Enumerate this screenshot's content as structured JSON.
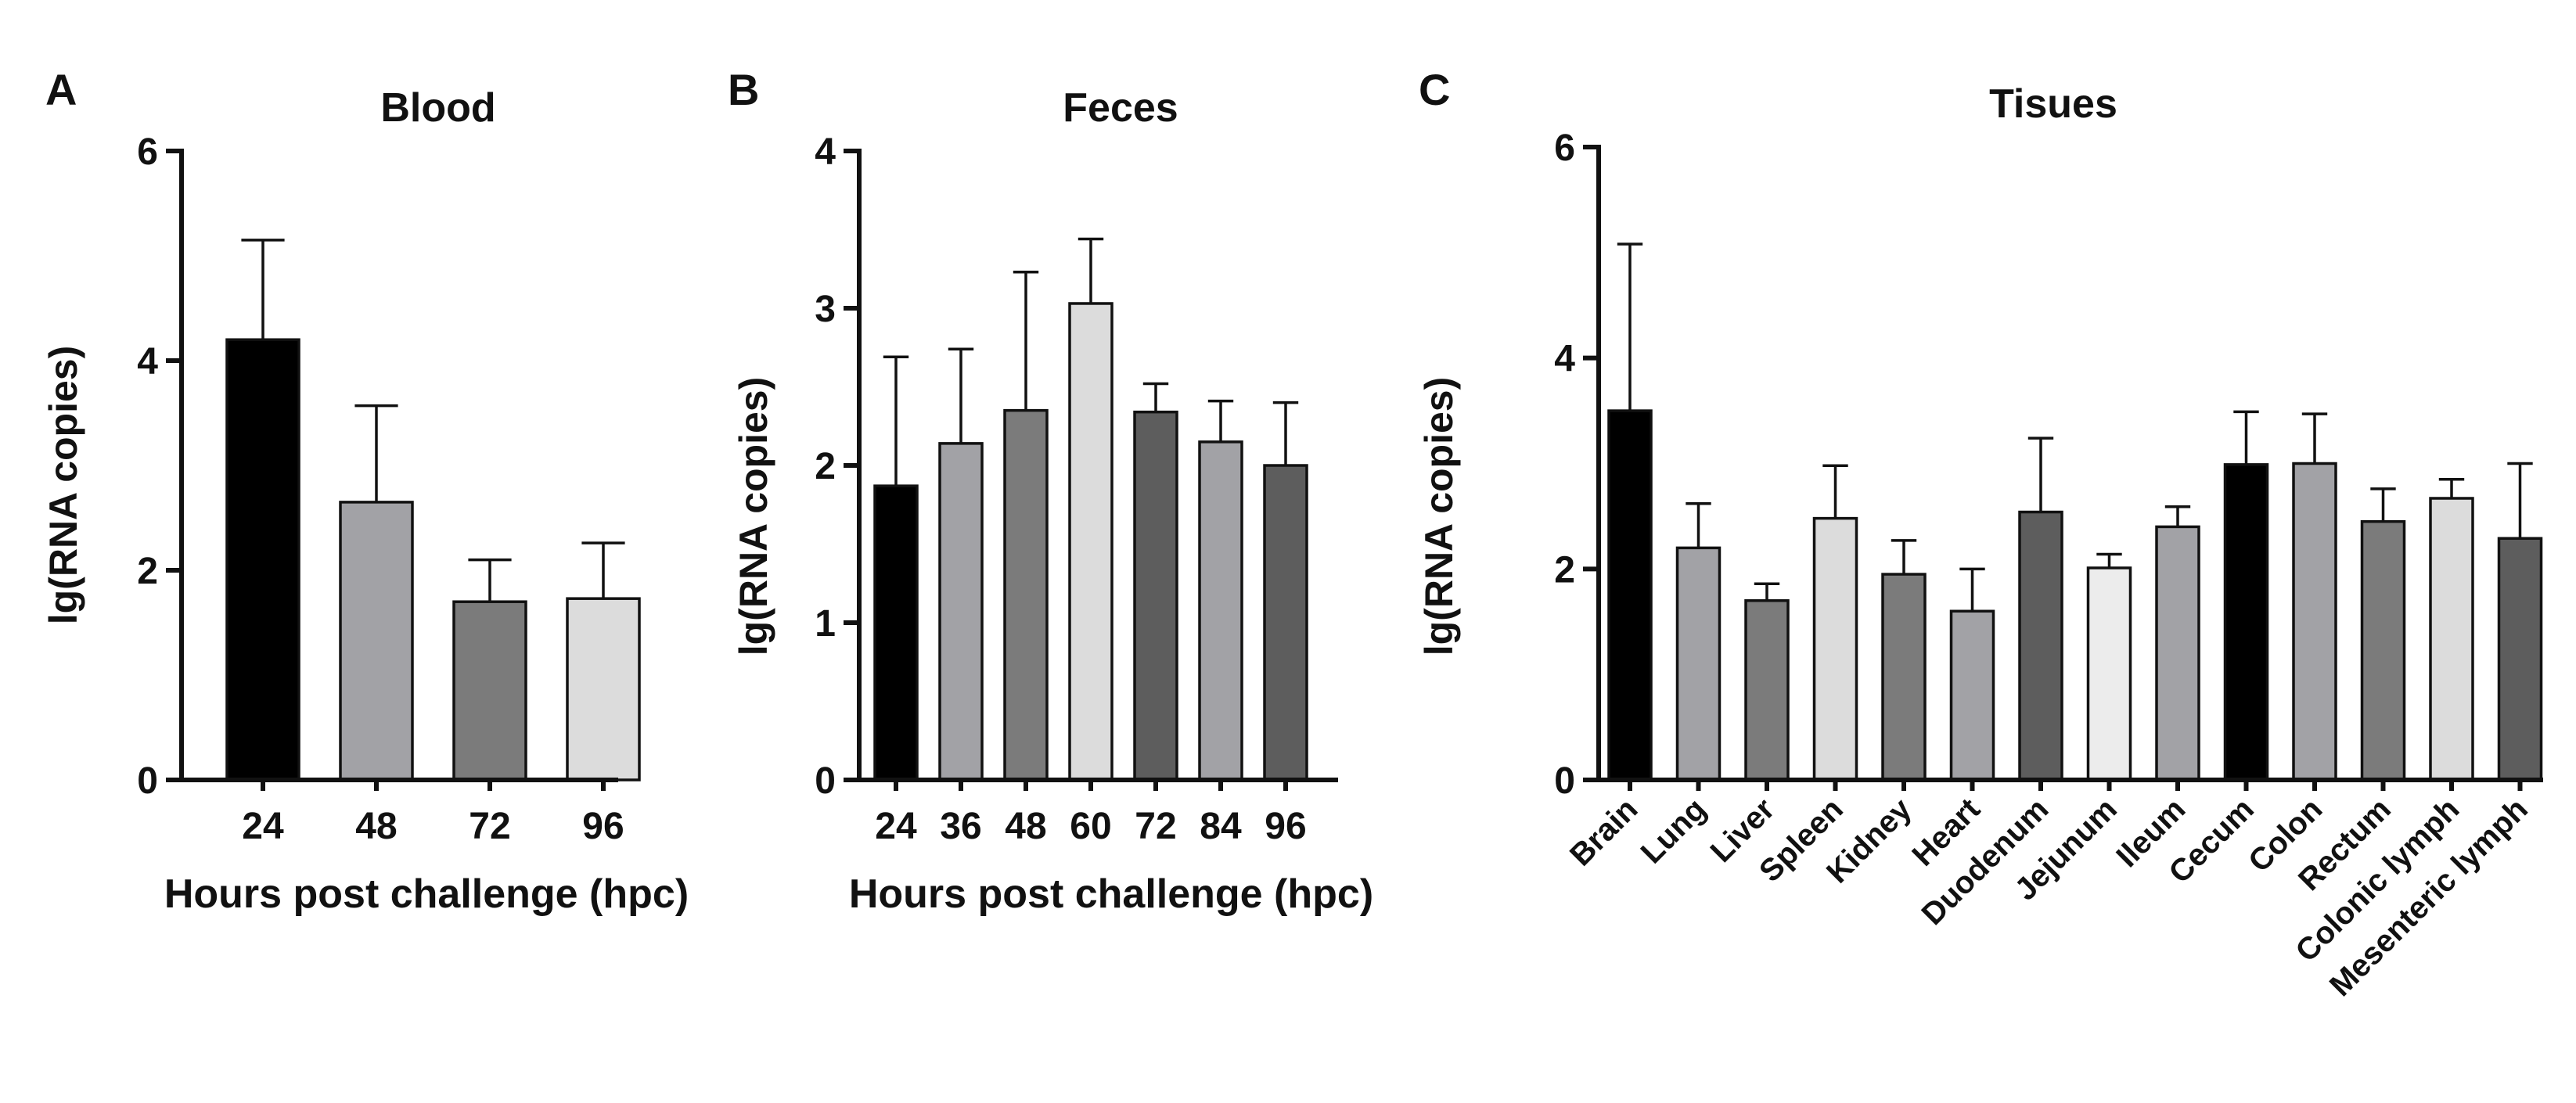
{
  "colors": {
    "black": "#000000",
    "mid_gray": "#a2a2a6",
    "dark_gray": "#7b7b7b",
    "light_gray": "#dcdcdc",
    "charcoal": "#5d5d5d",
    "lightest": "#ececec"
  },
  "chart_data": [
    {
      "panel": "A",
      "type": "bar",
      "title": "Blood",
      "xlabel": "Hours post challenge (hpc)",
      "ylabel": "lg(RNA copies)",
      "ylim": [
        0,
        6
      ],
      "yticks": [
        0,
        2,
        4,
        6
      ],
      "categories": [
        "24",
        "48",
        "72",
        "96"
      ],
      "values": [
        4.2,
        2.65,
        1.7,
        1.73
      ],
      "errors": [
        0.95,
        0.92,
        0.4,
        0.53
      ],
      "colors": [
        "#000000",
        "#a2a2a6",
        "#7b7b7b",
        "#dcdcdc"
      ],
      "rotate_labels": false
    },
    {
      "panel": "B",
      "type": "bar",
      "title": "Feces",
      "xlabel": "Hours post challenge (hpc)",
      "ylabel": "lg(RNA copies)",
      "ylim": [
        0,
        4
      ],
      "yticks": [
        0,
        1,
        2,
        3,
        4
      ],
      "categories": [
        "24",
        "36",
        "48",
        "60",
        "72",
        "84",
        "96"
      ],
      "values": [
        1.87,
        2.14,
        2.35,
        3.03,
        2.34,
        2.15,
        2.0
      ],
      "errors": [
        0.82,
        0.6,
        0.88,
        0.41,
        0.18,
        0.26,
        0.4
      ],
      "colors": [
        "#000000",
        "#a2a2a6",
        "#7b7b7b",
        "#dcdcdc",
        "#5d5d5d",
        "#a2a2a6",
        "#5d5d5d"
      ],
      "rotate_labels": false
    },
    {
      "panel": "C",
      "type": "bar",
      "title": "Tisues",
      "xlabel": "",
      "ylabel": "lg(RNA copies)",
      "ylim": [
        0,
        6
      ],
      "yticks": [
        0,
        2,
        4,
        6
      ],
      "categories": [
        "Brain",
        "Lung",
        "Liver",
        "Spleen",
        "Kidney",
        "Heart",
        "Duodenum",
        "Jejunum",
        "Ileum",
        "Cecum",
        "Colon",
        "Rectum",
        "Colonic lymph",
        "Mesenteric lymph"
      ],
      "values": [
        3.5,
        2.2,
        1.7,
        2.48,
        1.95,
        1.6,
        2.54,
        2.01,
        2.4,
        2.99,
        3.0,
        2.45,
        2.67,
        2.29
      ],
      "errors": [
        1.58,
        0.42,
        0.16,
        0.5,
        0.32,
        0.4,
        0.7,
        0.13,
        0.19,
        0.5,
        0.47,
        0.31,
        0.18,
        0.71
      ],
      "colors": [
        "#000000",
        "#a2a2a6",
        "#7b7b7b",
        "#dcdcdc",
        "#7b7b7b",
        "#a2a2a6",
        "#5d5d5d",
        "#ececec",
        "#a2a2a6",
        "#000000",
        "#a2a2a6",
        "#7b7b7b",
        "#dcdcdc",
        "#5d5d5d"
      ],
      "rotate_labels": true
    }
  ]
}
